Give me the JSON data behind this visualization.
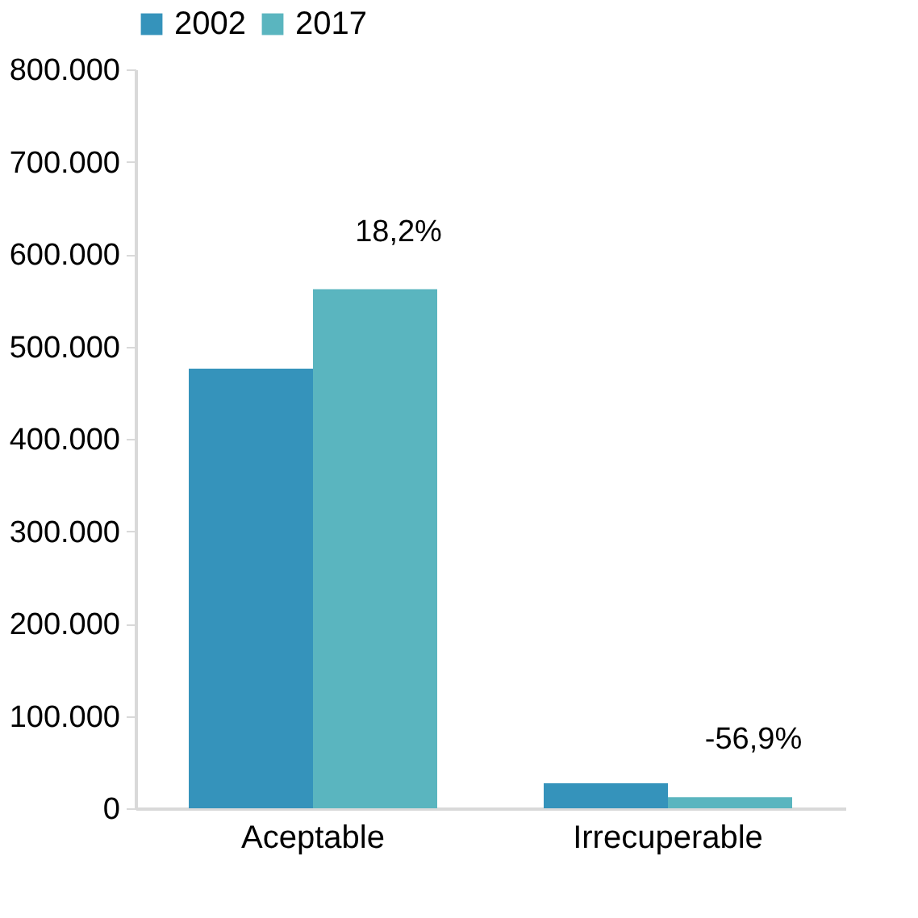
{
  "chart_data": {
    "type": "bar",
    "categories": [
      "Aceptable",
      "Irrecuperable"
    ],
    "series": [
      {
        "name": "2002",
        "color": "#3593bb",
        "values": [
          476000,
          27000
        ]
      },
      {
        "name": "2017",
        "color": "#5ab5bf",
        "values": [
          562000,
          12000
        ]
      }
    ],
    "ylim": [
      0,
      800000
    ],
    "yticks": [
      {
        "value": 0,
        "label": "0"
      },
      {
        "value": 100000,
        "label": "100.000"
      },
      {
        "value": 200000,
        "label": "200.000"
      },
      {
        "value": 300000,
        "label": "300.000"
      },
      {
        "value": 400000,
        "label": "400.000"
      },
      {
        "value": 500000,
        "label": "500.000"
      },
      {
        "value": 600000,
        "label": "600.000"
      },
      {
        "value": 700000,
        "label": "700.000"
      },
      {
        "value": 800000,
        "label": "800.000"
      }
    ],
    "annotations": [
      {
        "text": "18,2%",
        "x": "Aceptable",
        "y": 562000
      },
      {
        "text": "-56,9%",
        "x": "Irrecuperable",
        "y": 12000
      }
    ],
    "grid": false,
    "legend": "top"
  }
}
